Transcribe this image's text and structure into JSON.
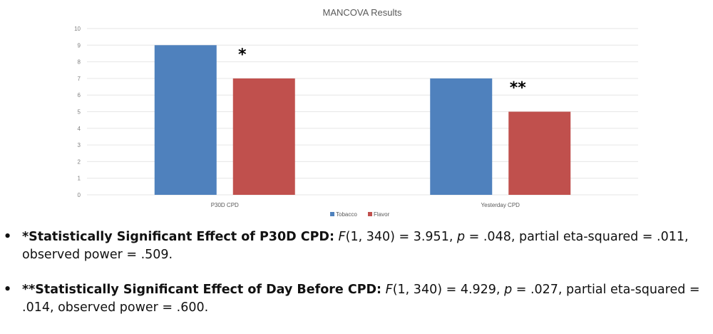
{
  "chart_data": {
    "type": "bar",
    "title": "MANCOVA Results",
    "xlabel": "",
    "ylabel": "",
    "ylim": [
      0,
      10
    ],
    "yticks": [
      0,
      1,
      2,
      3,
      4,
      5,
      6,
      7,
      8,
      9,
      10
    ],
    "grid": true,
    "legend_position": "bottom",
    "categories": [
      "P30D CPD",
      "Yesterday CPD"
    ],
    "series": [
      {
        "name": "Tobacco",
        "color": "#4f81bd",
        "values": [
          9,
          7
        ]
      },
      {
        "name": "Flavor",
        "color": "#c0504d",
        "values": [
          7,
          5
        ]
      }
    ],
    "annotations": [
      {
        "text": "*",
        "category": "P30D CPD"
      },
      {
        "text": "**",
        "category": "Yesterday CPD"
      }
    ]
  },
  "notes": [
    {
      "bullet": "•",
      "bold": "*Statistically Significant Effect of P30D CPD:",
      "f_label": "F",
      "f_value": "(1, 340) = 3.951, ",
      "p_label": "p",
      "rest": " = .048, partial eta-squared = .011, observed power = .509."
    },
    {
      "bullet": "•",
      "bold": "**Statistically Significant Effect of Day Before CPD:",
      "f_label": "F",
      "f_value": "(1, 340) = 4.929, ",
      "p_label": "p",
      "rest": " = .027, partial eta-squared = .014, observed power = .600."
    }
  ]
}
